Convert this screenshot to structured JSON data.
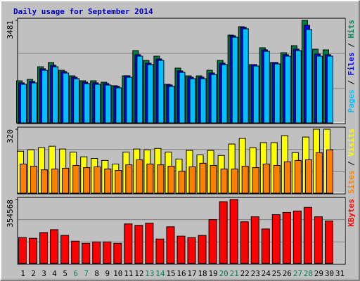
{
  "chart_data": [
    {
      "type": "bar",
      "title": "Daily usage for September 2014",
      "ylim": [
        0,
        3481
      ],
      "yticks": [
        3481
      ],
      "legend_separator": " / ",
      "series": [
        {
          "name": "Hits",
          "color": "#008040",
          "values": [
            1430,
            1478,
            1907,
            2050,
            1788,
            1597,
            1430,
            1430,
            1383,
            1264,
            1597,
            2456,
            2122,
            2265,
            1311,
            1860,
            1597,
            1597,
            1788,
            2122,
            2980,
            3266,
            1979,
            2551,
            2050,
            2384,
            2622,
            3481,
            2503,
            2479,
            null
          ]
        },
        {
          "name": "Files",
          "color": "#0000ff",
          "values": [
            1360,
            1409,
            1838,
            1957,
            1743,
            1552,
            1385,
            1361,
            1337,
            1242,
            1600,
            2315,
            2029,
            2172,
            1290,
            1766,
            1552,
            1552,
            1695,
            2029,
            2958,
            3245,
            1981,
            2482,
            2053,
            2315,
            2506,
            3314,
            2336,
            2315,
            null
          ]
        },
        {
          "name": "Pages",
          "color": "#00c0ff",
          "values": [
            1311,
            1359,
            1788,
            1907,
            1693,
            1502,
            1335,
            1311,
            1287,
            1192,
            1550,
            2265,
            1979,
            2122,
            1240,
            1716,
            1502,
            1502,
            1645,
            1979,
            2908,
            3195,
            1931,
            2432,
            2003,
            2265,
            2456,
            3171,
            2265,
            2265,
            null
          ]
        }
      ]
    },
    {
      "type": "bar",
      "ylim": [
        0,
        320
      ],
      "yticks": [
        320
      ],
      "legend_separator": " / ",
      "series": [
        {
          "name": "Visits",
          "color": "#ffff00",
          "values": [
            210,
            217,
            228,
            235,
            221,
            206,
            182,
            174,
            164,
            146,
            206,
            221,
            217,
            224,
            206,
            171,
            214,
            192,
            214,
            189,
            246,
            274,
            228,
            253,
            253,
            288,
            203,
            281,
            320,
            320,
            null
          ]
        },
        {
          "name": "Sites",
          "color": "#ff8000",
          "values": [
            146,
            135,
            117,
            121,
            125,
            139,
            128,
            132,
            121,
            114,
            142,
            167,
            146,
            142,
            135,
            110,
            132,
            150,
            139,
            121,
            121,
            135,
            128,
            146,
            139,
            157,
            164,
            167,
            203,
            217,
            null
          ]
        }
      ]
    },
    {
      "type": "bar",
      "ylim": [
        0,
        354568
      ],
      "yticks": [
        354568
      ],
      "series": [
        {
          "name": "KBytes",
          "color": "#ff0000",
          "values": [
            143424,
            139440,
            171312,
            187248,
            155376,
            123504,
            111552,
            119520,
            119520,
            111552,
            219120,
            211152,
            223104,
            135456,
            203184,
            151392,
            143424,
            155376,
            243024,
            342624,
            354568,
            231072,
            258960,
            191232,
            270912,
            282864,
            290832,
            310752,
            258960,
            235056,
            null
          ]
        }
      ],
      "categories": [
        "1",
        "2",
        "3",
        "4",
        "5",
        "6",
        "7",
        "8",
        "9",
        "10",
        "11",
        "12",
        "13",
        "14",
        "15",
        "16",
        "17",
        "18",
        "19",
        "20",
        "21",
        "22",
        "23",
        "24",
        "25",
        "26",
        "27",
        "28",
        "29",
        "30",
        "31"
      ],
      "category_colors": [
        "#000000",
        "#000000",
        "#000000",
        "#000000",
        "#000000",
        "#00805c",
        "#00805c",
        "#000000",
        "#000000",
        "#000000",
        "#000000",
        "#000000",
        "#00805c",
        "#00805c",
        "#000000",
        "#000000",
        "#000000",
        "#000000",
        "#000000",
        "#00805c",
        "#00805c",
        "#000000",
        "#000000",
        "#000000",
        "#000000",
        "#000000",
        "#00805c",
        "#00805c",
        "#000000",
        "#000000",
        "#000000"
      ]
    }
  ]
}
